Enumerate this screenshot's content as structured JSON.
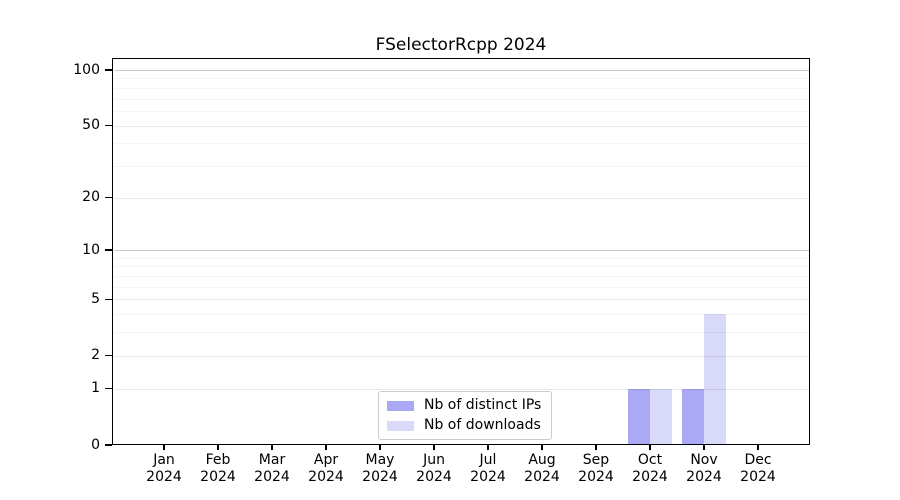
{
  "page": {
    "background_color": "#ffffff",
    "frame_color": "#000000"
  },
  "chart_data": {
    "type": "bar",
    "title": "FSelectorRcpp 2024",
    "categories": [
      "Jan",
      "Feb",
      "Mar",
      "Apr",
      "May",
      "Jun",
      "Jul",
      "Aug",
      "Sep",
      "Oct",
      "Nov",
      "Dec"
    ],
    "category_year": "2024",
    "series": [
      {
        "name": "Nb of distinct IPs",
        "color": "#a9a9f5",
        "values": [
          0,
          0,
          0,
          0,
          0,
          0,
          0,
          0,
          0,
          1,
          1,
          0
        ]
      },
      {
        "name": "Nb of downloads",
        "color": "#d9d9f9",
        "values": [
          0,
          0,
          0,
          0,
          0,
          0,
          0,
          0,
          0,
          1,
          4,
          0
        ]
      }
    ],
    "y_axis": {
      "scale": "log1p",
      "ticks": [
        0,
        1,
        2,
        5,
        10,
        20,
        50,
        100
      ],
      "tick_labels": [
        "0",
        "1",
        "2",
        "5",
        "10",
        "20",
        "50",
        "100"
      ],
      "minor_gridlines": [
        3,
        4,
        6,
        7,
        8,
        9,
        30,
        40,
        60,
        70,
        80,
        90
      ],
      "emphasized_gridlines": [
        10,
        100
      ],
      "ylim": [
        0,
        116
      ]
    },
    "xlabel": "",
    "ylabel": "",
    "grid": "horizontal",
    "legend_position": "bottom-center"
  }
}
